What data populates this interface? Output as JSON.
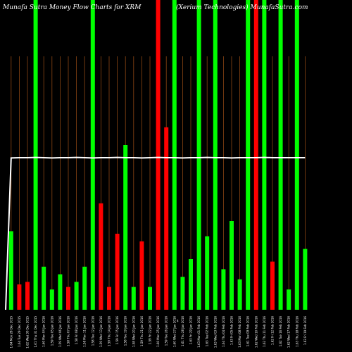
{
  "title_left": "Munafa Sutra  Money Flow  Charts for XRM",
  "title_right": "(Xerium Technologies)  MunafaSutra.com",
  "chart_data": {
    "type": "bar",
    "ylim": [
      0,
      100
    ],
    "colors": {
      "up": "#00ff00",
      "down": "#ff0000",
      "line": "#ffffff",
      "grid": "#8b4513"
    },
    "values": [
      31,
      10,
      11,
      100,
      17,
      8,
      14,
      9,
      11,
      17,
      100,
      42,
      9,
      30,
      65,
      9,
      27,
      9,
      100,
      72,
      100,
      13,
      20,
      100,
      29,
      100,
      16,
      35,
      12,
      100,
      100,
      100,
      19,
      100,
      8,
      100,
      24
    ],
    "directions": [
      "up",
      "down",
      "down",
      "up",
      "up",
      "up",
      "up",
      "down",
      "up",
      "up",
      "up",
      "down",
      "down",
      "down",
      "up",
      "up",
      "down",
      "up",
      "down",
      "down",
      "up",
      "up",
      "up",
      "up",
      "up",
      "up",
      "up",
      "up",
      "up",
      "up",
      "down",
      "up",
      "down",
      "up",
      "up",
      "up",
      "up"
    ],
    "flow_line": [
      0,
      60,
      60,
      60,
      60,
      60,
      60,
      60,
      60,
      60,
      60,
      60,
      60,
      60,
      60,
      60,
      60,
      60,
      60,
      60,
      60,
      60,
      60,
      60,
      60,
      60,
      60,
      60,
      60,
      60,
      60,
      60,
      60,
      60,
      60,
      60,
      60,
      60
    ],
    "categories": [
      "1.64 Mon 28 Dec 2015",
      "1.64 Tue 29 Dec 2015",
      "1.62 Wed 30 Dec 2015",
      "1.61 Thu 31 Dec 2015",
      "1.60 Mon 04 Jan 2016",
      "1.59 Tue 05 Jan 2016",
      "1.59 Wed 06 Jan 2016",
      "1.58 Thu 07 Jan 2016",
      "1.58 Fri 08 Jan 2016",
      "1.58 Mon 11 Jan 2016",
      "1.58 Tue 12 Jan 2016",
      "1.59 Wed 13 Jan 2016",
      "1.59 Thu 14 Jan 2016",
      "1.59 Fri 15 Jan 2016",
      "1.58 Tue 19 Jan 2016",
      "1.58 Wed 20 Jan 2016",
      "1.59 Thu 21 Jan 2016",
      "1.59 Fri 22 Jan 2016",
      "1.60 Mon 25 Jan 2016",
      "1.59 Tue 26 Jan 2016",
      "1.60 Wed 27 Jan 2016",
      "1.61 Thu 28 Jan 2016",
      "1.63 Fri 29 Jan 2016",
      "1.63 Mon 01 Feb 2016",
      "1.63 Tue 02 Feb 2016",
      "1.63 Wed 03 Feb 2016",
      "1.64 Thu 04 Feb 2016",
      "1.63 Fri 05 Feb 2016",
      "1.63 Mon 08 Feb 2016",
      "1.61 Tue 09 Feb 2016",
      "1.62 Wed 10 Feb 2016",
      "1.62 Thu 11 Feb 2016",
      "1.62 Fri 12 Feb 2016",
      "1.62 Tue 16 Feb 2016",
      "1.62 Wed 17 Feb 2016",
      "1.63 Thu 18 Feb 2016",
      "1.63 Fri 19 Feb 2016"
    ],
    "extra_label": "$"
  }
}
